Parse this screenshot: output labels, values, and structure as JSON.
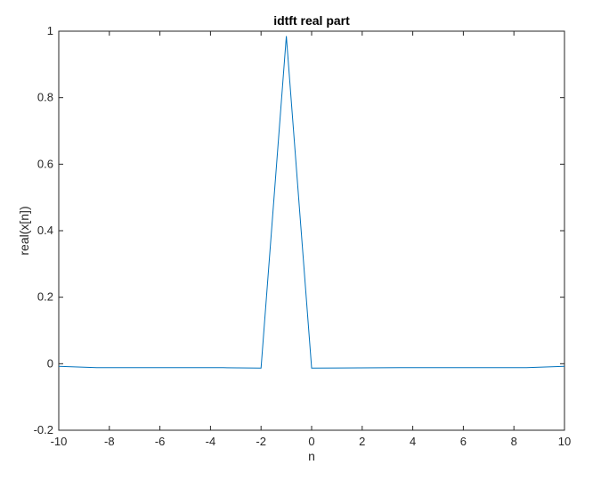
{
  "chart_data": {
    "type": "line",
    "title": "idtft real part",
    "xlabel": "n",
    "ylabel": "real(x[n])",
    "xlim": [
      -10,
      10
    ],
    "ylim": [
      -0.2,
      1
    ],
    "xticks": [
      -10,
      -8,
      -6,
      -4,
      -2,
      0,
      2,
      4,
      6,
      8,
      10
    ],
    "xtick_labels": [
      "-10",
      "-8",
      "-6",
      "-4",
      "-2",
      "0",
      "2",
      "4",
      "6",
      "8",
      "10"
    ],
    "yticks": [
      -0.2,
      0,
      0.2,
      0.4,
      0.6,
      0.8,
      1
    ],
    "ytick_labels": [
      "-0.2",
      "0",
      "0.2",
      "0.4",
      "0.6",
      "0.8",
      "1"
    ],
    "grid": false,
    "series": [
      {
        "color": "#0072bd",
        "x": [
          -10,
          -8.5,
          -3.5,
          -2,
          -1,
          0,
          3.5,
          8.5,
          10
        ],
        "y": [
          -0.008,
          -0.012,
          -0.012,
          -0.013,
          0.985,
          -0.013,
          -0.012,
          -0.012,
          -0.008
        ]
      }
    ]
  }
}
